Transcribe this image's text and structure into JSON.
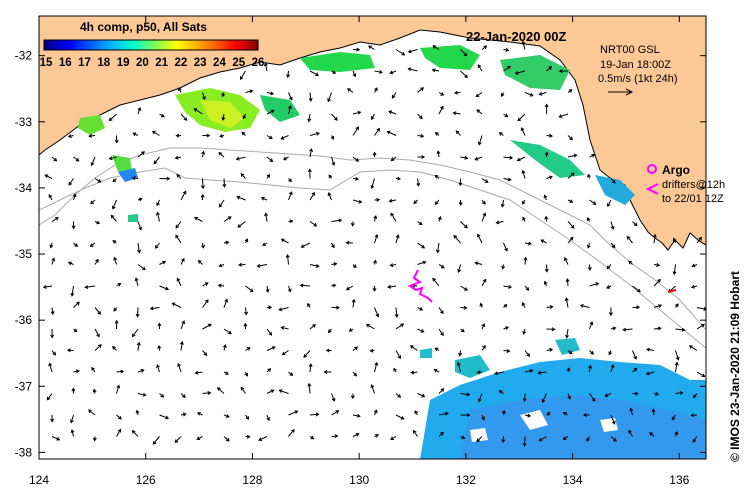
{
  "map": {
    "title": "22-Jan-2020 00Z",
    "lon_ticks": [
      "124",
      "126",
      "128",
      "130",
      "132",
      "134",
      "136"
    ],
    "lat_ticks": [
      "-32",
      "-33",
      "-34",
      "-35",
      "-36",
      "-37",
      "-38"
    ],
    "lon_range": [
      124,
      136.5
    ],
    "lat_range": [
      -31.4,
      -38.1
    ],
    "land_color": "#fcc896",
    "ocean_color": "#ffffff"
  },
  "colorbar": {
    "title": "4h comp, p50, All Sats",
    "labels": [
      "15",
      "16",
      "17",
      "18",
      "19",
      "20",
      "21",
      "22",
      "23",
      "24",
      "25",
      "26"
    ],
    "range": [
      15,
      26
    ],
    "colors": [
      "#00007f",
      "#0000ff",
      "#007fff",
      "#00ffff",
      "#7fff7f",
      "#ffff00",
      "#ff7f00",
      "#ff0000",
      "#7f0000"
    ]
  },
  "info": {
    "model": "NRT00 GSL",
    "analysis_time": "19-Jan 18:00Z",
    "scale_label": "0.5m/s (1kt 24h)"
  },
  "legend": {
    "argo_label": "Argo",
    "drifters_line1": "drifters@12h",
    "drifters_line2": "to 22/01 12Z",
    "argo_color": "#ff00ff"
  },
  "credit": "© IMOS 23-Jan-2020 21:09 Hobart"
}
